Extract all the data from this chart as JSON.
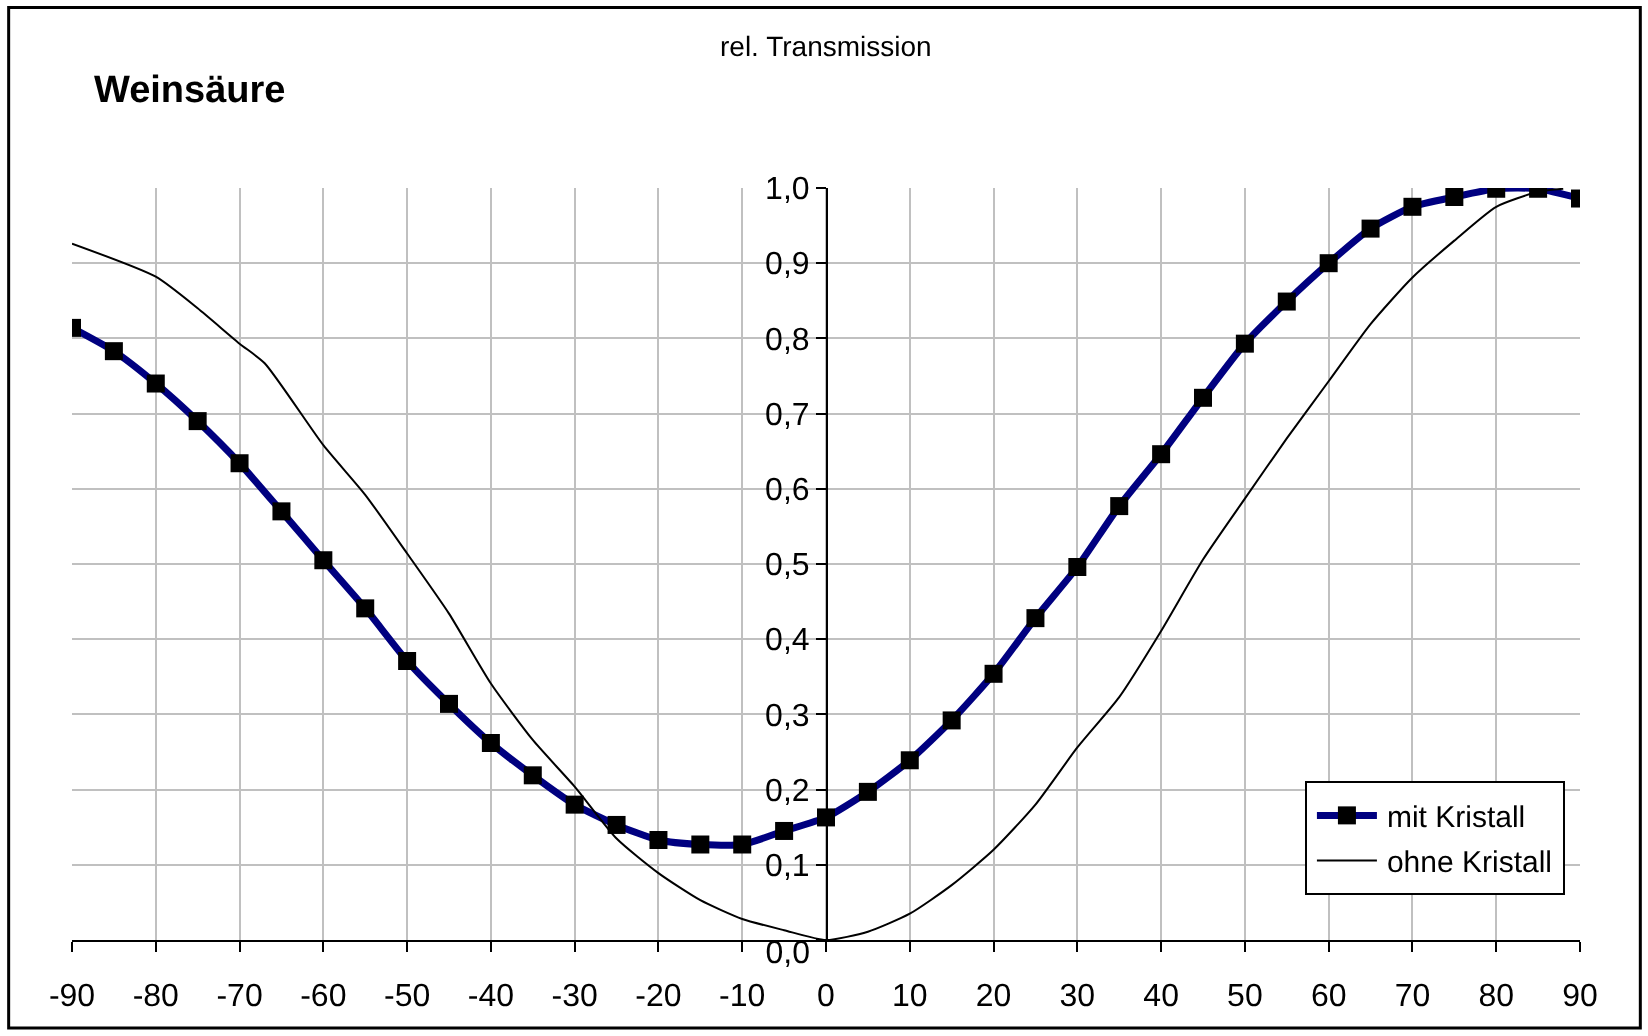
{
  "chart_data": {
    "type": "line",
    "title": "Weinsäure",
    "ylabel": "rel. Transmission",
    "xlim": [
      -90,
      90
    ],
    "xticks": [
      -90,
      -80,
      -70,
      -60,
      -50,
      -40,
      -30,
      -20,
      -10,
      0,
      10,
      20,
      30,
      40,
      50,
      60,
      70,
      80,
      90
    ],
    "ylim": [
      0,
      1
    ],
    "yticks": [
      {
        "value": 0,
        "label": "0,0"
      },
      {
        "value": 0.1,
        "label": "0,1"
      },
      {
        "value": 0.2,
        "label": "0,2"
      },
      {
        "value": 0.3,
        "label": "0,3"
      },
      {
        "value": 0.4,
        "label": "0,4"
      },
      {
        "value": 0.5,
        "label": "0,5"
      },
      {
        "value": 0.6,
        "label": "0,6"
      },
      {
        "value": 0.7,
        "label": "0,7"
      },
      {
        "value": 0.8,
        "label": "0,8"
      },
      {
        "value": 0.9,
        "label": "0,9"
      },
      {
        "value": 1,
        "label": "1,0"
      }
    ],
    "grid": true,
    "legend": "bottom right",
    "series": [
      {
        "name": "mit Kristall",
        "color": "#000080",
        "marker": "square",
        "x": [
          -90,
          -85,
          -80,
          -75,
          -70,
          -65,
          -60,
          -55,
          -50,
          -45,
          -40,
          -35,
          -30,
          -25,
          -20,
          -15,
          -10,
          -5,
          0,
          5,
          10,
          15,
          20,
          25,
          30,
          35,
          40,
          45,
          50,
          55,
          60,
          65,
          70,
          75,
          80,
          85,
          90
        ],
        "values": [
          0.814,
          0.783,
          0.74,
          0.69,
          0.634,
          0.57,
          0.505,
          0.441,
          0.371,
          0.314,
          0.262,
          0.219,
          0.18,
          0.153,
          0.133,
          0.127,
          0.127,
          0.145,
          0.163,
          0.197,
          0.239,
          0.292,
          0.354,
          0.428,
          0.496,
          0.577,
          0.646,
          0.721,
          0.793,
          0.849,
          0.9,
          0.946,
          0.975,
          0.988,
          0.999,
          0.999,
          0.986
        ]
      },
      {
        "name": "ohne Kristall",
        "color": "#000000",
        "marker": "none",
        "x": [
          -90,
          -80,
          -75,
          -70,
          -67,
          -60,
          -55,
          -50,
          -45,
          -40,
          -35,
          -30,
          -25,
          -20,
          -15,
          -10,
          -5,
          0,
          5,
          10,
          15,
          20,
          25,
          30,
          35,
          40,
          45,
          50,
          55,
          60,
          65,
          70,
          75,
          80,
          85,
          88
        ],
        "values": [
          0.926,
          0.882,
          0.84,
          0.793,
          0.767,
          0.658,
          0.592,
          0.514,
          0.434,
          0.341,
          0.266,
          0.204,
          0.135,
          0.089,
          0.053,
          0.028,
          0.013,
          0.0,
          0.011,
          0.035,
          0.073,
          0.12,
          0.18,
          0.256,
          0.323,
          0.411,
          0.506,
          0.587,
          0.667,
          0.743,
          0.819,
          0.881,
          0.93,
          0.975,
          0.995,
          0.999
        ]
      }
    ]
  }
}
